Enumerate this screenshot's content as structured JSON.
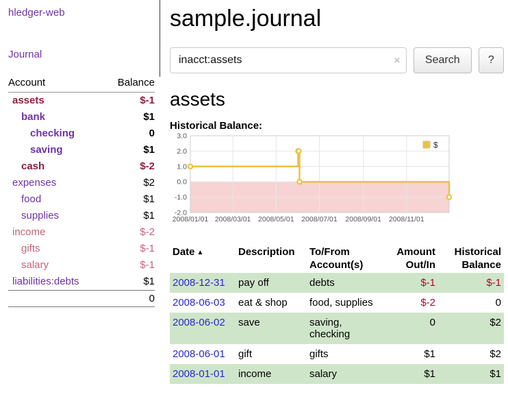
{
  "app": {
    "title": "hledger-web"
  },
  "colors": {
    "link_purple": "#6f32a8",
    "date_link_blue": "#2929cc",
    "negative_dark": "#8e1f3e",
    "negative_light": "#c4647a",
    "table_negative": "#a40c32",
    "row_stripe_green": "#cfe5c9",
    "chart_series_yellow": "#edc240",
    "chart_negative_region": "#f8d3d3"
  },
  "sidebar": {
    "journal_link": "Journal",
    "accounts_header": {
      "account": "Account",
      "balance": "Balance"
    },
    "accounts": [
      {
        "name": "assets",
        "balance": "$-1",
        "level": 0,
        "bold": true,
        "negative": true
      },
      {
        "name": "bank",
        "balance": "$1",
        "level": 1,
        "bold": true,
        "negative": false
      },
      {
        "name": "checking",
        "balance": "0",
        "level": 2,
        "bold": true,
        "negative": false
      },
      {
        "name": "saving",
        "balance": "$1",
        "level": 2,
        "bold": true,
        "negative": false
      },
      {
        "name": "cash",
        "balance": "$-2",
        "level": 1,
        "bold": true,
        "negative": true
      },
      {
        "name": "expenses",
        "balance": "$2",
        "level": 0,
        "bold": false,
        "negative": false
      },
      {
        "name": "food",
        "balance": "$1",
        "level": 1,
        "bold": false,
        "negative": false
      },
      {
        "name": "supplies",
        "balance": "$1",
        "level": 1,
        "bold": false,
        "negative": false
      },
      {
        "name": "income",
        "balance": "$-2",
        "level": 0,
        "bold": false,
        "negative": true
      },
      {
        "name": "gifts",
        "balance": "$-1",
        "level": 1,
        "bold": false,
        "negative": true
      },
      {
        "name": "salary",
        "balance": "$-1",
        "level": 1,
        "bold": false,
        "negative": true
      },
      {
        "name": "liabilities:debts",
        "balance": "$1",
        "level": 0,
        "bold": false,
        "negative": false
      }
    ],
    "total": "0"
  },
  "main": {
    "title": "sample.journal",
    "search": {
      "value": "inacct:assets",
      "clear_icon": "×",
      "button": "Search",
      "help_button": "?"
    },
    "account_heading": "assets",
    "chart_label": "Historical Balance:",
    "register": {
      "columns": [
        {
          "lines": [
            "Date"
          ],
          "align": "left",
          "sort": "▲"
        },
        {
          "lines": [
            "Description"
          ],
          "align": "left"
        },
        {
          "lines": [
            "To/From",
            "Account(s)"
          ],
          "align": "left"
        },
        {
          "lines": [
            "Amount",
            "Out/In"
          ],
          "align": "right"
        },
        {
          "lines": [
            "Historical",
            "Balance"
          ],
          "align": "right"
        }
      ],
      "rows": [
        {
          "date": "2008-12-31",
          "description": "pay off",
          "accounts": "debts",
          "amount": "$-1",
          "amount_negative": true,
          "balance": "$-1",
          "balance_negative": true
        },
        {
          "date": "2008-06-03",
          "description": "eat & shop",
          "accounts": "food, supplies",
          "amount": "$-2",
          "amount_negative": true,
          "balance": "0",
          "balance_negative": false
        },
        {
          "date": "2008-06-02",
          "description": "save",
          "accounts": "saving, checking",
          "amount": "0",
          "amount_negative": false,
          "balance": "$2",
          "balance_negative": false
        },
        {
          "date": "2008-06-01",
          "description": "gift",
          "accounts": "gifts",
          "amount": "$1",
          "amount_negative": false,
          "balance": "$2",
          "balance_negative": false
        },
        {
          "date": "2008-01-01",
          "description": "income",
          "accounts": "salary",
          "amount": "$1",
          "amount_negative": false,
          "balance": "$1",
          "balance_negative": false
        }
      ]
    }
  },
  "chart_data": {
    "type": "line",
    "title": "Historical Balance",
    "step": true,
    "series": [
      {
        "name": "$",
        "color": "#edc240",
        "points": [
          [
            "2008-01-01",
            1
          ],
          [
            "2008-06-01",
            2
          ],
          [
            "2008-06-02",
            2
          ],
          [
            "2008-06-03",
            0
          ],
          [
            "2008-12-31",
            -1
          ]
        ]
      }
    ],
    "xlim": [
      "2008-01-01",
      "2008-12-31"
    ],
    "ylim": [
      -2,
      3
    ],
    "x_ticks": [
      "2008/01/01",
      "2008/03/01",
      "2008/05/01",
      "2008/07/01",
      "2008/09/01",
      "2008/11/01"
    ],
    "y_ticks": [
      3.0,
      2.0,
      1.0,
      0.0,
      -1.0,
      -2.0
    ],
    "grid": true,
    "legend_position": "top-right",
    "negative_region_fill": "#f8d3d3"
  }
}
